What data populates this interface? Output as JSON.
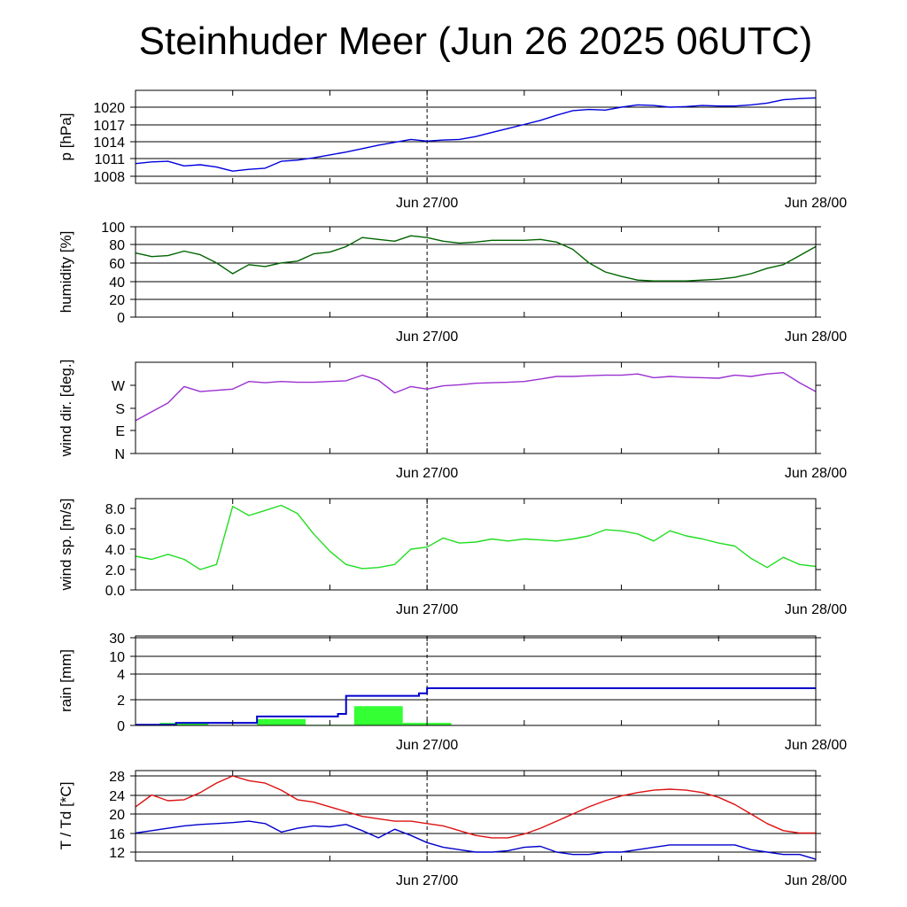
{
  "title": "Steinhuder Meer (Jun 26 2025 06UTC)",
  "x_tick_labels": [
    "Jun 27/00",
    "Jun 28/00"
  ],
  "colors": {
    "pressure": "#0000dd",
    "humidity": "#006400",
    "wind_dir": "#9b30d0",
    "wind_speed": "#22dd22",
    "rain_bar": "#33ff33",
    "rain_sum": "#0000cc",
    "temperature": "#dd1111",
    "dewpoint": "#0000cc"
  },
  "chart_data": [
    {
      "type": "line",
      "ylabel": "p [hPa]",
      "y_ticks": [
        "1008",
        "1011",
        "1014",
        "1017",
        "1020"
      ],
      "ylim": [
        1007,
        1023
      ],
      "grid": true,
      "x_hours": [
        0,
        1,
        2,
        3,
        4,
        5,
        6,
        7,
        8,
        9,
        10,
        11,
        12,
        13,
        14,
        15,
        16,
        17,
        18,
        19,
        20,
        21,
        22,
        23,
        24,
        25,
        26,
        27,
        28,
        29,
        30,
        31,
        32,
        33,
        34,
        35,
        36,
        37,
        38,
        39,
        40,
        41,
        42
      ],
      "series": [
        {
          "values": [
            1010.2,
            1010.5,
            1010.6,
            1009.8,
            1010.0,
            1009.6,
            1008.9,
            1009.2,
            1009.4,
            1010.6,
            1010.8,
            1011.2,
            1011.7,
            1012.2,
            1012.8,
            1013.4,
            1013.9,
            1014.4,
            1014.1,
            1014.3,
            1014.4,
            1014.9,
            1015.6,
            1016.3,
            1017.0,
            1017.7,
            1018.6,
            1019.4,
            1019.6,
            1019.5,
            1020.0,
            1020.4,
            1020.3,
            1020.0,
            1020.1,
            1020.3,
            1020.2,
            1020.2,
            1020.4,
            1020.7,
            1021.3,
            1021.5,
            1021.6
          ]
        }
      ]
    },
    {
      "type": "line",
      "ylabel": "humidity [%]",
      "y_ticks": [
        "0",
        "20",
        "40",
        "60",
        "80",
        "100"
      ],
      "ylim": [
        0,
        100
      ],
      "grid": true,
      "x_hours": [
        0,
        1,
        2,
        3,
        4,
        5,
        6,
        7,
        8,
        9,
        10,
        11,
        12,
        13,
        14,
        15,
        16,
        17,
        18,
        19,
        20,
        21,
        22,
        23,
        24,
        25,
        26,
        27,
        28,
        29,
        30,
        31,
        32,
        33,
        34,
        35,
        36,
        37,
        38,
        39,
        40,
        41,
        42
      ],
      "series": [
        {
          "values": [
            71,
            67,
            68,
            73,
            69,
            60,
            48,
            58,
            56,
            60,
            62,
            70,
            72,
            78,
            88,
            86,
            84,
            90,
            88,
            84,
            82,
            83,
            85,
            85,
            85,
            86,
            83,
            75,
            60,
            50,
            45,
            41,
            40,
            40,
            40,
            41,
            42,
            44,
            48,
            54,
            58,
            68,
            78
          ]
        }
      ]
    },
    {
      "type": "line",
      "ylabel": "wind dir. [deg.]",
      "y_ticks": [
        "N",
        "E",
        "S",
        "W"
      ],
      "ylim": [
        0,
        390
      ],
      "grid": false,
      "x_hours": [
        0,
        1,
        2,
        3,
        4,
        5,
        6,
        7,
        8,
        9,
        10,
        11,
        12,
        13,
        14,
        15,
        16,
        17,
        18,
        19,
        20,
        21,
        22,
        23,
        24,
        25,
        26,
        27,
        28,
        29,
        30,
        31,
        32,
        33,
        34,
        35,
        36,
        37,
        38,
        39,
        40,
        41,
        42
      ],
      "series": [
        {
          "values": [
            130,
            165,
            200,
            265,
            245,
            250,
            255,
            285,
            280,
            285,
            282,
            282,
            285,
            288,
            310,
            290,
            240,
            265,
            255,
            268,
            272,
            278,
            280,
            282,
            285,
            295,
            305,
            305,
            308,
            310,
            310,
            315,
            300,
            305,
            302,
            300,
            298,
            310,
            305,
            315,
            320,
            280,
            245
          ]
        }
      ]
    },
    {
      "type": "line",
      "ylabel": "wind sp. [m/s]",
      "y_ticks": [
        "0.0",
        "2.0",
        "4.0",
        "6.0",
        "8.0"
      ],
      "ylim": [
        0,
        9
      ],
      "grid": false,
      "x_hours": [
        0,
        1,
        2,
        3,
        4,
        5,
        6,
        7,
        8,
        9,
        10,
        11,
        12,
        13,
        14,
        15,
        16,
        17,
        18,
        19,
        20,
        21,
        22,
        23,
        24,
        25,
        26,
        27,
        28,
        29,
        30,
        31,
        32,
        33,
        34,
        35,
        36,
        37,
        38,
        39,
        40,
        41,
        42
      ],
      "series": [
        {
          "values": [
            3.3,
            3.0,
            3.5,
            3.0,
            2.0,
            2.5,
            8.2,
            7.3,
            7.8,
            8.3,
            7.5,
            5.5,
            3.8,
            2.5,
            2.1,
            2.2,
            2.5,
            4.0,
            4.2,
            5.1,
            4.6,
            4.7,
            5.0,
            4.8,
            5.0,
            4.9,
            4.8,
            5.0,
            5.3,
            5.9,
            5.8,
            5.5,
            4.8,
            5.8,
            5.3,
            5.0,
            4.6,
            4.3,
            3.1,
            2.2,
            3.2,
            2.5,
            2.3
          ]
        }
      ]
    },
    {
      "type": "bar",
      "ylabel": "rain [mm]",
      "y_ticks": [
        "0",
        "2",
        "4",
        "10",
        "30"
      ],
      "bars": [
        {
          "start": 1.5,
          "end": 4.5,
          "value": 0.2
        },
        {
          "start": 7.5,
          "end": 10.5,
          "value": 0.5
        },
        {
          "start": 10.5,
          "end": 13.5,
          "value": 0.05
        },
        {
          "start": 13.5,
          "end": 16.5,
          "value": 1.5
        },
        {
          "start": 16.5,
          "end": 19.5,
          "value": 0.2
        }
      ],
      "cumulative": {
        "x_hours": [
          0,
          2.5,
          6,
          7.5,
          12.5,
          13,
          17.5,
          18,
          42
        ],
        "values": [
          0.05,
          0.2,
          0.2,
          0.7,
          0.9,
          2.3,
          2.5,
          2.9,
          2.9
        ]
      }
    },
    {
      "type": "line",
      "ylabel": "T / Td [*C]",
      "y_ticks": [
        "12",
        "16",
        "20",
        "24",
        "28"
      ],
      "ylim": [
        10,
        29
      ],
      "grid": true,
      "x_hours": [
        0,
        1,
        2,
        3,
        4,
        5,
        6,
        7,
        8,
        9,
        10,
        11,
        12,
        13,
        14,
        15,
        16,
        17,
        18,
        19,
        20,
        21,
        22,
        23,
        24,
        25,
        26,
        27,
        28,
        29,
        30,
        31,
        32,
        33,
        34,
        35,
        36,
        37,
        38,
        39,
        40,
        41,
        42
      ],
      "series": [
        {
          "name": "T",
          "values": [
            21.5,
            24.0,
            22.8,
            23.0,
            24.5,
            26.5,
            28.0,
            27.0,
            26.5,
            25.0,
            23.0,
            22.5,
            21.5,
            20.5,
            19.5,
            19.0,
            18.5,
            18.5,
            18.0,
            17.5,
            16.5,
            15.5,
            15.0,
            15.0,
            15.8,
            17.0,
            18.5,
            20.0,
            21.5,
            22.8,
            23.8,
            24.5,
            25.0,
            25.2,
            25.0,
            24.5,
            23.5,
            22.0,
            20.0,
            18.0,
            16.5,
            16.0,
            16.0
          ]
        },
        {
          "name": "Td",
          "values": [
            16.0,
            16.5,
            17.0,
            17.5,
            17.8,
            18.0,
            18.2,
            18.5,
            18.0,
            16.2,
            17.0,
            17.5,
            17.3,
            17.8,
            16.5,
            15.0,
            16.8,
            15.5,
            14.0,
            13.0,
            12.5,
            12.0,
            12.0,
            12.3,
            13.0,
            13.2,
            12.0,
            11.5,
            11.5,
            12.0,
            12.0,
            12.5,
            13.0,
            13.5,
            13.5,
            13.5,
            13.5,
            13.5,
            12.5,
            12.0,
            11.5,
            11.5,
            10.5
          ]
        }
      ]
    }
  ]
}
